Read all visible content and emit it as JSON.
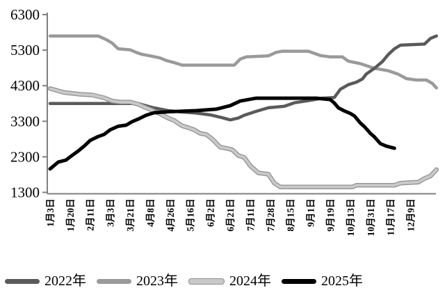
{
  "chart_data": {
    "type": "line",
    "title": "",
    "xlabel": "",
    "ylabel": "",
    "ylim": [
      1300,
      6300
    ],
    "grid": false,
    "legend_position": "bottom",
    "y_ticks": [
      "6300",
      "5300",
      "4300",
      "3300",
      "2300",
      "1300"
    ],
    "x_labels": [
      "1月3日",
      "1月20日",
      "2月11日",
      "3月3日",
      "3月21日",
      "4月8日",
      "4月26日",
      "5月16日",
      "6月2日",
      "6月21日",
      "7月11日",
      "7月28日",
      "8月15日",
      "9月1日",
      "9月19日",
      "10月13日",
      "10月31日",
      "11月17日",
      "12月9日"
    ],
    "series": [
      {
        "name": "2023年",
        "color": "#9a9a9a",
        "width": 4.5,
        "points": [
          [
            0,
            5700
          ],
          [
            2.4,
            5700
          ],
          [
            2.8,
            5600
          ],
          [
            3.1,
            5500
          ],
          [
            3.4,
            5340
          ],
          [
            4.0,
            5310
          ],
          [
            4.3,
            5240
          ],
          [
            4.6,
            5180
          ],
          [
            5.0,
            5140
          ],
          [
            5.5,
            5080
          ],
          [
            5.8,
            5010
          ],
          [
            6.2,
            4950
          ],
          [
            6.6,
            4880
          ],
          [
            9.2,
            4880
          ],
          [
            9.5,
            5050
          ],
          [
            9.8,
            5110
          ],
          [
            10.9,
            5140
          ],
          [
            11.3,
            5240
          ],
          [
            11.6,
            5270
          ],
          [
            12.9,
            5270
          ],
          [
            13.5,
            5150
          ],
          [
            14.0,
            5110
          ],
          [
            14.6,
            5110
          ],
          [
            14.9,
            4990
          ],
          [
            15.5,
            4920
          ],
          [
            16.2,
            4790
          ],
          [
            16.9,
            4720
          ],
          [
            17.4,
            4620
          ],
          [
            17.8,
            4500
          ],
          [
            18.3,
            4460
          ],
          [
            18.8,
            4460
          ],
          [
            19.1,
            4360
          ],
          [
            19.3,
            4240
          ]
        ]
      },
      {
        "name": "2022年",
        "color": "#5a5a5a",
        "width": 4.5,
        "points": [
          [
            0,
            3800
          ],
          [
            4.4,
            3800
          ],
          [
            5.1,
            3690
          ],
          [
            5.9,
            3600
          ],
          [
            6.6,
            3560
          ],
          [
            7.3,
            3530
          ],
          [
            8.0,
            3480
          ],
          [
            8.6,
            3400
          ],
          [
            9.0,
            3340
          ],
          [
            9.4,
            3390
          ],
          [
            9.7,
            3470
          ],
          [
            10.3,
            3580
          ],
          [
            10.9,
            3680
          ],
          [
            11.7,
            3720
          ],
          [
            12.2,
            3820
          ],
          [
            12.9,
            3880
          ],
          [
            13.6,
            3950
          ],
          [
            14.2,
            3970
          ],
          [
            14.5,
            4200
          ],
          [
            14.9,
            4330
          ],
          [
            15.3,
            4400
          ],
          [
            15.6,
            4490
          ],
          [
            15.8,
            4630
          ],
          [
            16.2,
            4790
          ],
          [
            16.6,
            4980
          ],
          [
            16.9,
            5180
          ],
          [
            17.2,
            5340
          ],
          [
            17.5,
            5440
          ],
          [
            18.7,
            5470
          ],
          [
            19.0,
            5630
          ],
          [
            19.3,
            5700
          ]
        ]
      },
      {
        "name": "2024年",
        "color": "#c9c9c9",
        "outline": "#8f8f8f",
        "width": 4,
        "points": [
          [
            0,
            4220
          ],
          [
            0.7,
            4110
          ],
          [
            1.5,
            4060
          ],
          [
            2.1,
            4040
          ],
          [
            2.7,
            3960
          ],
          [
            3.1,
            3870
          ],
          [
            3.5,
            3840
          ],
          [
            4.0,
            3840
          ],
          [
            4.4,
            3780
          ],
          [
            4.8,
            3680
          ],
          [
            5.1,
            3610
          ],
          [
            5.5,
            3510
          ],
          [
            5.9,
            3390
          ],
          [
            6.2,
            3320
          ],
          [
            6.6,
            3170
          ],
          [
            6.9,
            3120
          ],
          [
            7.2,
            3060
          ],
          [
            7.5,
            2960
          ],
          [
            7.8,
            2930
          ],
          [
            8.1,
            2800
          ],
          [
            8.5,
            2570
          ],
          [
            8.8,
            2540
          ],
          [
            9.1,
            2500
          ],
          [
            9.4,
            2340
          ],
          [
            9.7,
            2280
          ],
          [
            10.0,
            2050
          ],
          [
            10.4,
            1850
          ],
          [
            10.9,
            1810
          ],
          [
            11.2,
            1560
          ],
          [
            11.5,
            1450
          ],
          [
            15.1,
            1450
          ],
          [
            15.3,
            1500
          ],
          [
            17.2,
            1500
          ],
          [
            17.5,
            1560
          ],
          [
            18.4,
            1590
          ],
          [
            18.7,
            1690
          ],
          [
            19.0,
            1760
          ],
          [
            19.3,
            1940
          ]
        ]
      },
      {
        "name": "2025年",
        "color": "#000000",
        "width": 5,
        "points": [
          [
            0,
            1960
          ],
          [
            0.4,
            2150
          ],
          [
            0.8,
            2210
          ],
          [
            1.1,
            2340
          ],
          [
            1.4,
            2460
          ],
          [
            1.7,
            2600
          ],
          [
            2.0,
            2760
          ],
          [
            2.4,
            2870
          ],
          [
            2.7,
            2930
          ],
          [
            3.0,
            3060
          ],
          [
            3.4,
            3160
          ],
          [
            3.8,
            3190
          ],
          [
            4.1,
            3290
          ],
          [
            4.4,
            3360
          ],
          [
            4.8,
            3470
          ],
          [
            5.2,
            3540
          ],
          [
            6.0,
            3570
          ],
          [
            7.3,
            3600
          ],
          [
            8.3,
            3640
          ],
          [
            9.0,
            3740
          ],
          [
            9.5,
            3870
          ],
          [
            10.3,
            3950
          ],
          [
            13.3,
            3950
          ],
          [
            14.0,
            3910
          ],
          [
            14.2,
            3810
          ],
          [
            14.4,
            3680
          ],
          [
            14.7,
            3590
          ],
          [
            15.0,
            3520
          ],
          [
            15.2,
            3450
          ],
          [
            15.5,
            3250
          ],
          [
            15.7,
            3150
          ],
          [
            16.0,
            2960
          ],
          [
            16.2,
            2860
          ],
          [
            16.5,
            2670
          ],
          [
            16.8,
            2600
          ],
          [
            17.2,
            2540
          ]
        ]
      }
    ],
    "legend_order": [
      "2022年",
      "2023年",
      "2024年",
      "2025年"
    ],
    "axis_color": "#7f7f7f"
  }
}
